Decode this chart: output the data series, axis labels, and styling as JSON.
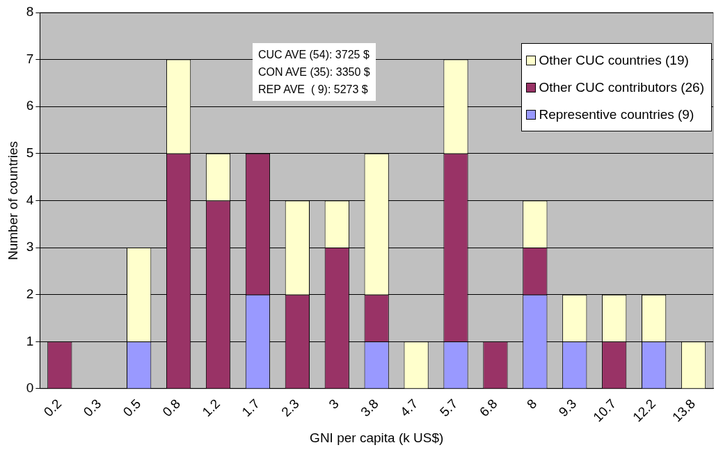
{
  "chart_data": {
    "type": "bar",
    "stacked": true,
    "xlabel": "GNI per capita (k US$)",
    "ylabel": "Number of countries",
    "categories": [
      "0.2",
      "0.3",
      "0.5",
      "0.8",
      "1.2",
      "1.7",
      "2.3",
      "3",
      "3.8",
      "4.7",
      "5.7",
      "6.8",
      "8",
      "9.3",
      "10.7",
      "12.2",
      "13.8"
    ],
    "series": [
      {
        "name": "Representive countries (9)",
        "color": "#9999ff",
        "values": [
          0,
          0,
          1,
          0,
          0,
          2,
          0,
          0,
          1,
          0,
          1,
          0,
          2,
          1,
          0,
          1,
          0
        ]
      },
      {
        "name": "Other CUC contributors (26)",
        "color": "#993366",
        "values": [
          1,
          0,
          0,
          5,
          4,
          3,
          2,
          3,
          1,
          0,
          4,
          1,
          1,
          0,
          1,
          0,
          0
        ]
      },
      {
        "name": "Other CUC countries (19)",
        "color": "#ffffcc",
        "values": [
          0,
          0,
          2,
          2,
          1,
          0,
          2,
          1,
          3,
          1,
          2,
          0,
          1,
          1,
          1,
          1,
          1
        ]
      }
    ],
    "ylim": [
      0,
      8
    ],
    "yticks": [
      0,
      1,
      2,
      3,
      4,
      5,
      6,
      7,
      8
    ],
    "grid": "y",
    "legend": "top right",
    "annotations": [
      "CUC AVE (54): 3725 $",
      "CON AVE (35): 3350 $",
      "REP AVE  ( 9): 5273 $"
    ]
  }
}
